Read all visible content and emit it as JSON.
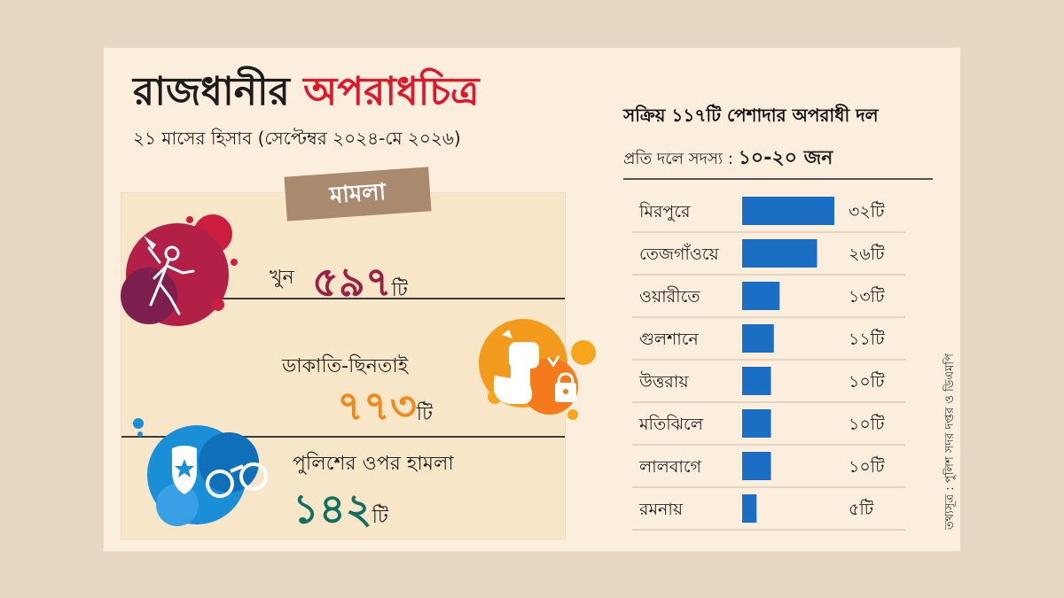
{
  "title": {
    "main": "রাজধানীর",
    "accent": "অপরাধচিত্র"
  },
  "subtitle": "২১ মাসের হিসাব (সেপ্টেম্বর ২০২৪-মে ২০২৬)",
  "cases": {
    "tag": "মামলা",
    "items": [
      {
        "label": "খুন",
        "value": "৫৯৭",
        "unit": "টি",
        "icon": "murder-icon",
        "color": "#9c1f45"
      },
      {
        "label": "ডাকাতি-ছিনতাই",
        "value": "৭৭৩",
        "unit": "টি",
        "icon": "fist-money-bag-icon",
        "color": "#f08a1c"
      },
      {
        "label": "পুলিশের ওপর হামলা",
        "value": "১৪২",
        "unit": "টি",
        "icon": "police-badge-handcuff-icon",
        "color": "#136f63"
      }
    ]
  },
  "gangs": {
    "title": "সক্রিয় ১১৭টি পেশাদার অপরাধী দল",
    "members_label": "প্রতি দলে সদস্য :",
    "members_value": "১০-২০ জন"
  },
  "chart_data": {
    "type": "bar",
    "orientation": "horizontal",
    "categories": [
      "মিরপুরে",
      "তেজগাঁওয়ে",
      "ওয়ারীতে",
      "গুলশানে",
      "উত্তরায়",
      "মতিঝিলে",
      "লালবাগে",
      "রমনায়"
    ],
    "values": [
      32,
      26,
      13,
      11,
      10,
      10,
      10,
      5
    ],
    "value_labels": [
      "৩২টি",
      "২৬টি",
      "১৩টি",
      "১১টি",
      "১০টি",
      "১০টি",
      "১০টি",
      "৫টি"
    ],
    "bar_color": "#1a6fc4"
  },
  "source": "তথ্যসূত্র : পুলিশ সদর দপ্তর ও ডিএমপি"
}
